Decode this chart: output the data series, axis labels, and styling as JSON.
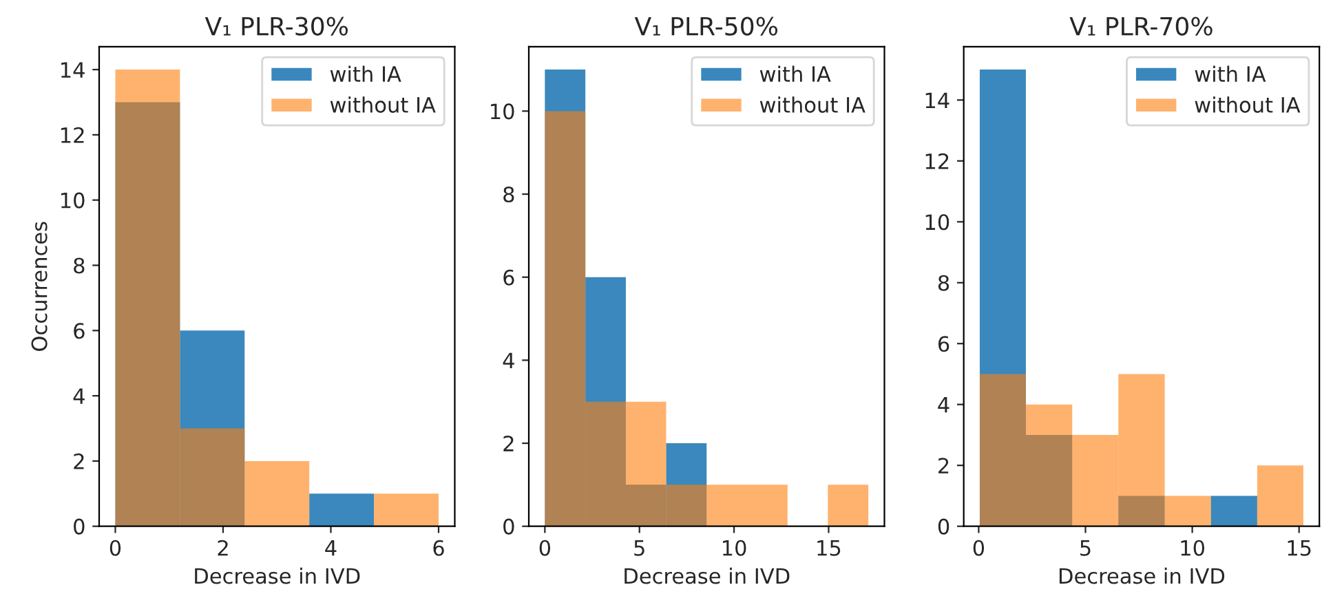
{
  "chart_data": [
    {
      "type": "histogram",
      "title": "V₁ PLR-30%",
      "xlabel": "Decrease in IVD",
      "ylabel": "Occurrences",
      "legend": "top right",
      "bins": [
        0,
        1.2,
        2.4,
        3.6,
        4.8,
        6.0
      ],
      "series": [
        {
          "name": "with IA",
          "color": "#1f77b4",
          "values": [
            13,
            6,
            0,
            1,
            0
          ]
        },
        {
          "name": "without IA",
          "color": "#ff7f0e",
          "values": [
            14,
            3,
            2,
            0,
            1
          ]
        }
      ],
      "xlim": [
        -0.3,
        6.3
      ],
      "ylim": [
        0,
        14.7
      ],
      "xticks": [
        0,
        2,
        4,
        6
      ],
      "yticks": [
        0,
        2,
        4,
        6,
        8,
        10,
        12,
        14
      ]
    },
    {
      "type": "histogram",
      "title": "V₁ PLR-50%",
      "xlabel": "Decrease in IVD",
      "legend": "top right",
      "bins": [
        0,
        2.14,
        4.28,
        6.41,
        8.55,
        10.69,
        12.83,
        14.96,
        17.1
      ],
      "series": [
        {
          "name": "with IA",
          "color": "#1f77b4",
          "values": [
            11,
            6,
            1,
            2,
            0,
            0,
            0,
            0
          ]
        },
        {
          "name": "without IA",
          "color": "#ff7f0e",
          "values": [
            10,
            3,
            3,
            1,
            1,
            1,
            0,
            1
          ]
        }
      ],
      "xlim": [
        -0.85,
        17.95
      ],
      "ylim": [
        0,
        11.55
      ],
      "xticks": [
        0,
        5,
        10,
        15
      ],
      "yticks": [
        0,
        2,
        4,
        6,
        8,
        10
      ]
    },
    {
      "type": "histogram",
      "title": "V₁ PLR-70%",
      "xlabel": "Decrease in IVD",
      "legend": "top right",
      "bins": [
        0.05,
        2.21,
        4.38,
        6.54,
        8.71,
        10.87,
        13.04,
        15.2
      ],
      "series": [
        {
          "name": "with IA",
          "color": "#1f77b4",
          "values": [
            15,
            3,
            0,
            1,
            0,
            1,
            0
          ]
        },
        {
          "name": "without IA",
          "color": "#ff7f0e",
          "values": [
            5,
            4,
            3,
            5,
            1,
            0,
            2
          ]
        }
      ],
      "xlim": [
        -0.7,
        15.95
      ],
      "ylim": [
        0,
        15.75
      ],
      "xticks": [
        0,
        5,
        10,
        15
      ],
      "yticks": [
        0,
        2,
        4,
        6,
        8,
        10,
        12,
        14
      ]
    }
  ]
}
